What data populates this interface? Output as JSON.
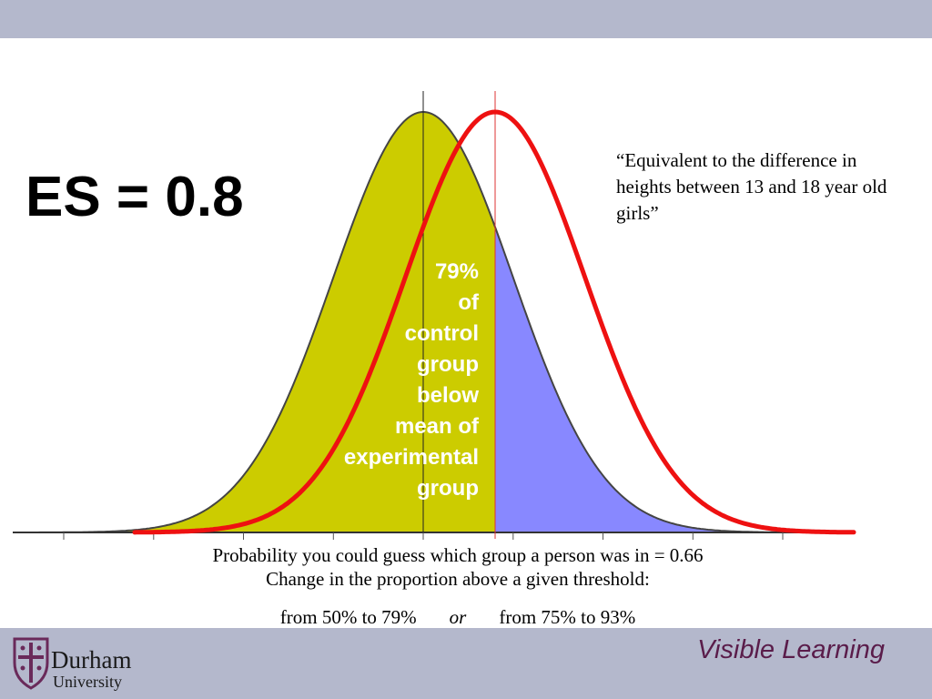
{
  "slide": {
    "title": "ES = 0.8",
    "quote": "“Equivalent to the difference in heights between 13 and 18 year old girls”",
    "overlap_label": [
      "79%",
      "of",
      "control",
      "group",
      "below",
      "mean of",
      "experimental",
      "group"
    ],
    "caption_probability": "Probability you could guess which group a person was in = 0.66",
    "caption_change": "Change in the proportion above a given threshold:",
    "caption_from1": "from 50% to 79%",
    "caption_or": "or",
    "caption_from2": "from 75% to 93%"
  },
  "footer": {
    "university_name": "Durham",
    "university_sub": "University",
    "brand": "Visible Learning"
  },
  "diagram": {
    "effect_size": 0.8,
    "control_mean": 0,
    "experimental_mean": 0.8,
    "colors": {
      "control_below": "#cccc00",
      "control_above": "#8888ff",
      "experimental_curve": "#ee1111",
      "outline": "#444444",
      "mean_line": "#dd3333"
    }
  }
}
